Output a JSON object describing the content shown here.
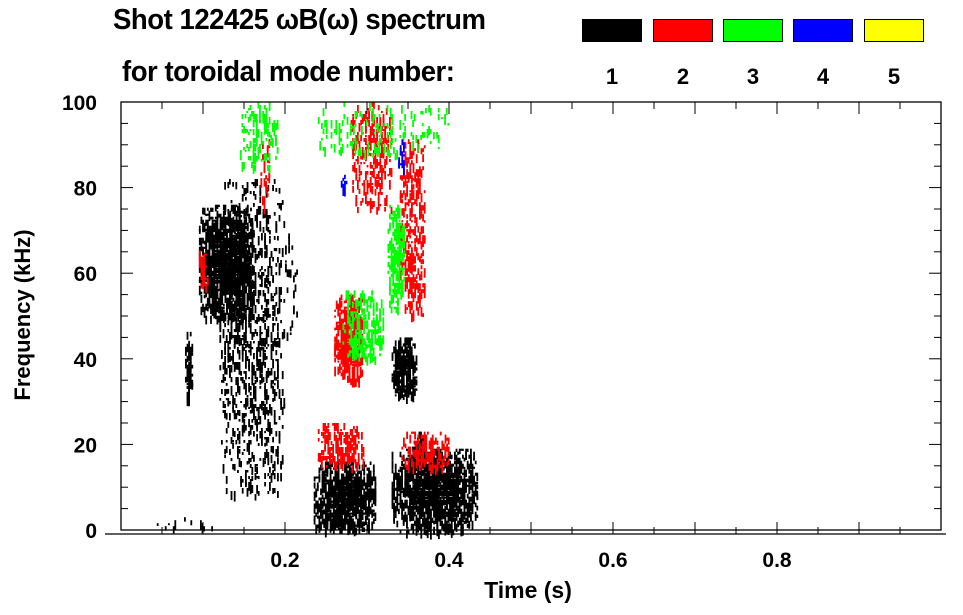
{
  "chart_data": {
    "type": "heatmap",
    "title": "Shot 122425 ωB(ω) spectrum",
    "subtitle": "for toroidal mode number:",
    "xlabel": "Time (s)",
    "ylabel": "Frequency (kHz)",
    "xlim": [
      0,
      1.0
    ],
    "ylim": [
      0,
      100
    ],
    "xticks": [
      "0.2",
      "0.4",
      "0.6",
      "0.8"
    ],
    "xtick_values": [
      0.2,
      0.4,
      0.6,
      0.8
    ],
    "yticks": [
      "0",
      "20",
      "40",
      "60",
      "80",
      "100"
    ],
    "ytick_values": [
      0,
      20,
      40,
      60,
      80,
      100
    ],
    "legend": [
      {
        "mode": "1",
        "color": "#000000"
      },
      {
        "mode": "2",
        "color": "#ff0000"
      },
      {
        "mode": "3",
        "color": "#00ff00"
      },
      {
        "mode": "4",
        "color": "#0000ff"
      },
      {
        "mode": "5",
        "color": "#ffff00"
      }
    ],
    "regions": [
      {
        "mode": 1,
        "t": [
          0.078,
          0.086
        ],
        "f": [
          30,
          47
        ],
        "density": 0.7
      },
      {
        "mode": 1,
        "t": [
          0.095,
          0.16
        ],
        "f": [
          50,
          76
        ],
        "density": 0.85
      },
      {
        "mode": 1,
        "t": [
          0.12,
          0.2
        ],
        "f": [
          8,
          82
        ],
        "density": 0.25
      },
      {
        "mode": 1,
        "t": [
          0.2,
          0.215
        ],
        "f": [
          45,
          70
        ],
        "density": 0.15
      },
      {
        "mode": 1,
        "t": [
          0.235,
          0.31
        ],
        "f": [
          0,
          16
        ],
        "density": 0.8
      },
      {
        "mode": 1,
        "t": [
          0.33,
          0.435
        ],
        "f": [
          0,
          19
        ],
        "density": 0.85
      },
      {
        "mode": 1,
        "t": [
          0.355,
          0.37
        ],
        "f": [
          15,
          23
        ],
        "density": 0.7
      },
      {
        "mode": 1,
        "t": [
          0.33,
          0.36
        ],
        "f": [
          31,
          45
        ],
        "density": 0.75
      },
      {
        "mode": 1,
        "t": [
          0.03,
          0.12
        ],
        "f": [
          0,
          3
        ],
        "density": 0.1
      },
      {
        "mode": 2,
        "t": [
          0.095,
          0.105
        ],
        "f": [
          57,
          66
        ],
        "density": 0.6
      },
      {
        "mode": 2,
        "t": [
          0.17,
          0.18
        ],
        "f": [
          75,
          92
        ],
        "density": 0.4
      },
      {
        "mode": 2,
        "t": [
          0.26,
          0.295
        ],
        "f": [
          35,
          55
        ],
        "density": 0.75
      },
      {
        "mode": 2,
        "t": [
          0.24,
          0.295
        ],
        "f": [
          15,
          25
        ],
        "density": 0.45
      },
      {
        "mode": 2,
        "t": [
          0.28,
          0.33
        ],
        "f": [
          75,
          100
        ],
        "density": 0.35
      },
      {
        "mode": 2,
        "t": [
          0.34,
          0.4
        ],
        "f": [
          14,
          23
        ],
        "density": 0.4
      },
      {
        "mode": 2,
        "t": [
          0.34,
          0.37
        ],
        "f": [
          50,
          92
        ],
        "density": 0.35
      },
      {
        "mode": 3,
        "t": [
          0.145,
          0.19
        ],
        "f": [
          85,
          100
        ],
        "density": 0.3
      },
      {
        "mode": 3,
        "t": [
          0.27,
          0.32
        ],
        "f": [
          40,
          56
        ],
        "density": 0.45
      },
      {
        "mode": 3,
        "t": [
          0.325,
          0.345
        ],
        "f": [
          52,
          76
        ],
        "density": 0.55
      },
      {
        "mode": 3,
        "t": [
          0.24,
          0.4
        ],
        "f": [
          88,
          100
        ],
        "density": 0.12
      },
      {
        "mode": 4,
        "t": [
          0.268,
          0.274
        ],
        "f": [
          80,
          83
        ],
        "density": 0.8
      },
      {
        "mode": 4,
        "t": [
          0.338,
          0.345
        ],
        "f": [
          84,
          92
        ],
        "density": 0.6
      }
    ]
  }
}
